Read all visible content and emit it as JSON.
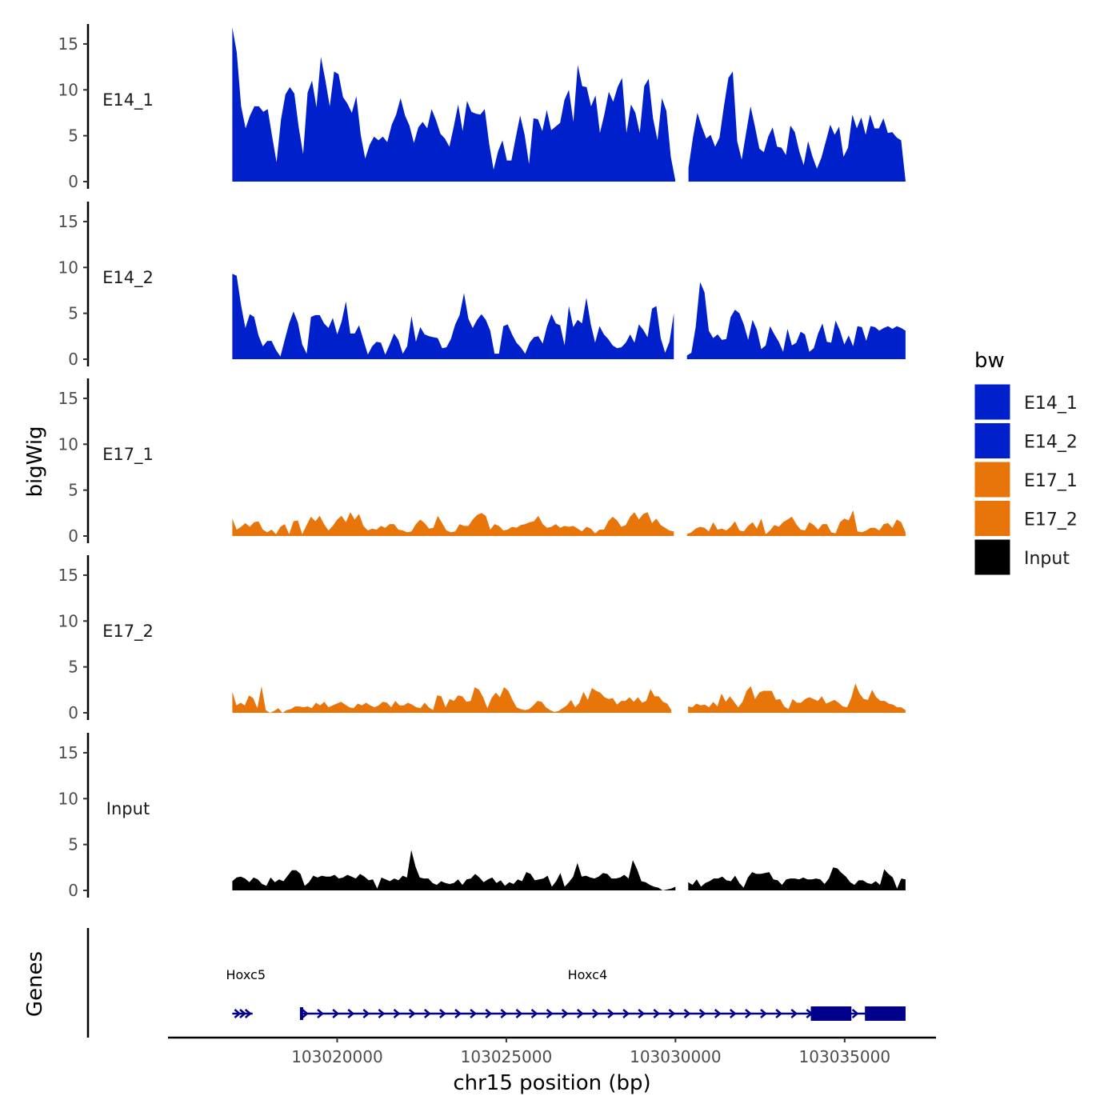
{
  "chart_data": {
    "type": "area",
    "chromosome": "chr15",
    "xlabel": "chr15 position (bp)",
    "ylabel": "bigWig",
    "genes_label": "Genes",
    "xlim": [
      103015000,
      103037700
    ],
    "region": [
      103016900,
      103036800
    ],
    "x_ticks": [
      103020000,
      103025000,
      103030000,
      103035000
    ],
    "x_tick_labels": [
      "103020000",
      "103025000",
      "103030000",
      "103035000"
    ],
    "ylim": [
      0,
      17
    ],
    "y_ticks": [
      0,
      5,
      10,
      15
    ],
    "y_tick_labels": [
      "0",
      "5",
      "10",
      "15"
    ],
    "gap": [
      103030000,
      103030300
    ],
    "legend": {
      "title": "bw",
      "items": [
        {
          "label": "E14_1",
          "color": "#0020CC"
        },
        {
          "label": "E14_2",
          "color": "#0020CC"
        },
        {
          "label": "E17_1",
          "color": "#E8750A"
        },
        {
          "label": "E17_2",
          "color": "#E8750A"
        },
        {
          "label": "Input",
          "color": "#000000"
        }
      ]
    },
    "series": [
      {
        "name": "E14_1",
        "color": "#0020CC",
        "values": [
          16.8,
          14.1,
          8.2,
          5.8,
          7.2,
          8.2,
          8.2,
          7.6,
          7.9,
          4.9,
          2.1,
          6.8,
          9.5,
          10.3,
          9.6,
          5.9,
          3,
          9.7,
          11,
          8.1,
          13.6,
          11.1,
          8.2,
          12,
          11.7,
          9.2,
          8.5,
          7.5,
          9.3,
          5.1,
          2.5,
          4,
          4.9,
          4.5,
          4.9,
          4.3,
          6.2,
          7.3,
          9.1,
          7.2,
          6.1,
          4.2,
          5.9,
          6.5,
          5.8,
          7.9,
          6.7,
          5.2,
          4.7,
          3.8,
          6,
          8.4,
          5.5,
          8.8,
          7.6,
          7.4,
          7.3,
          7.9,
          4.1,
          1.3,
          3.3,
          4.5,
          2.3,
          2.3,
          4.8,
          7.2,
          5.1,
          1.9,
          6.9,
          6.8,
          5.5,
          7.8,
          5.6,
          6,
          6.4,
          8.9,
          10,
          6.5,
          12.7,
          10.4,
          10.3,
          8.2,
          9.4,
          5.3,
          7.3,
          9.8,
          8.7,
          10.3,
          11.3,
          5.3,
          8.4,
          7.5,
          5.3,
          10.4,
          11.2,
          6.9,
          4.5,
          9.1,
          7.7,
          2.7,
          0.2,
          1.2,
          2.8,
          1.5,
          4.8,
          7.5,
          6,
          4.7,
          5.1,
          3.8,
          4.8,
          8.2,
          11.3,
          12,
          4.4,
          2.4,
          5.3,
          8.2,
          6,
          3.6,
          3.2,
          4.9,
          5.9,
          3.8,
          3.7,
          2.9,
          6.1,
          5.4,
          3.3,
          1.8,
          4.4,
          2.7,
          1.4,
          2.6,
          4.4,
          6.2,
          5.1,
          6,
          2.7,
          3.7,
          7.3,
          5.8,
          7,
          5.1,
          7.3,
          5.8,
          5.8,
          6.9,
          5.3,
          5.4,
          4.8,
          4.5,
          0.1
        ]
      },
      {
        "name": "E14_2",
        "color": "#0020CC",
        "values": [
          9.3,
          9.1,
          5.9,
          3.4,
          4.9,
          4.6,
          2.6,
          1.4,
          2,
          2,
          1,
          0.3,
          2.1,
          3.9,
          5.2,
          4,
          1.6,
          0.6,
          4.6,
          4.8,
          4.8,
          3.9,
          3.4,
          4.5,
          2.7,
          4.1,
          6.3,
          2.8,
          2.8,
          3.7,
          2.1,
          0.5,
          1.4,
          1.9,
          1.8,
          0.5,
          1.6,
          2.8,
          2.1,
          0.6,
          1.4,
          4.7,
          1.9,
          3.5,
          2.7,
          2.5,
          2.4,
          2.3,
          1.2,
          1.3,
          2.2,
          3.8,
          4.8,
          7.2,
          4.4,
          3.4,
          4.3,
          4.9,
          4.3,
          3.1,
          0.6,
          0.6,
          3.6,
          3.8,
          2.7,
          1.8,
          1.3,
          0.6,
          1.8,
          2.4,
          2.5,
          1.7,
          3.6,
          4.9,
          3.9,
          3.7,
          1.5,
          5.8,
          3.5,
          4.3,
          3.9,
          6.7,
          3.8,
          1.8,
          3.6,
          2.7,
          2.2,
          1.5,
          1.2,
          1.3,
          1.8,
          2.7,
          1.8,
          3.8,
          3.2,
          2.4,
          5.5,
          5.8,
          2.3,
          0.7,
          1.9,
          5,
          2.2,
          0.1,
          0.4,
          0.7,
          3.5,
          8.4,
          7.3,
          3.1,
          2.3,
          2.7,
          2.1,
          2.2,
          4.6,
          5.4,
          5,
          3.8,
          2.1,
          4.3,
          3.2,
          1.1,
          1.5,
          3.6,
          2.7,
          1.9,
          0.8,
          3.3,
          1.5,
          1.8,
          3,
          2.7,
          0.8,
          1.2,
          2.8,
          3.9,
          1.9,
          1.8,
          4.2,
          3.1,
          1.6,
          2.6,
          1.4,
          3.6,
          3.5,
          2,
          3.6,
          3.5,
          3.1,
          3.4,
          3.6,
          3.3,
          3.6,
          3.4,
          3.1
        ]
      },
      {
        "name": "E17_1",
        "color": "#E8750A",
        "values": [
          1.9,
          0.7,
          1,
          1.4,
          1,
          1.5,
          1.6,
          0.7,
          0.4,
          0.7,
          0.2,
          1,
          1.3,
          0.2,
          1.6,
          1.7,
          0.2,
          1.2,
          2.1,
          1.6,
          2.2,
          1.3,
          0.6,
          1.1,
          1.8,
          2.2,
          1.5,
          2.6,
          1.8,
          2.4,
          1.1,
          0.6,
          0.8,
          0.7,
          1.1,
          0.9,
          1.3,
          1.3,
          0.7,
          0.6,
          0.4,
          0.5,
          1.3,
          1.8,
          1.4,
          0.8,
          0.9,
          2.2,
          1.4,
          0.6,
          0.4,
          0.5,
          1.3,
          1.1,
          1.1,
          1.8,
          2.3,
          2.5,
          2.2,
          0.7,
          1.3,
          1.1,
          0.6,
          0.7,
          1,
          0.9,
          1.2,
          1.3,
          1.5,
          1.6,
          2.2,
          1.3,
          0.9,
          1,
          1.3,
          0.9,
          1.1,
          1,
          1.1,
          0.8,
          0.5,
          1,
          0.8,
          0.3,
          0.7,
          0.7,
          1.6,
          2.1,
          1.7,
          1,
          1.2,
          2.1,
          2.6,
          1.8,
          2.4,
          2.6,
          1.4,
          1.9,
          1.2,
          0.9,
          0.6,
          0.5,
          0.4,
          0,
          0.2,
          0.4,
          0.8,
          1,
          0.9,
          0.5,
          1.5,
          0.7,
          0.8,
          0.6,
          1,
          1.6,
          0.6,
          0.5,
          1.1,
          1.5,
          0.8,
          1.9,
          0.2,
          0.6,
          1.2,
          1,
          1.5,
          1.8,
          2.1,
          1.3,
          0.7,
          0.6,
          1.5,
          1.2,
          0.7,
          1.3,
          1.3,
          0.4,
          0.3,
          1.5,
          1.9,
          1.7,
          2.8,
          0.5,
          0.4,
          0.6,
          0.9,
          0.9,
          0.6,
          1.3,
          1.4,
          0.9,
          1.8,
          1.5,
          0.4
        ]
      },
      {
        "name": "E17_2",
        "color": "#E8750A",
        "values": [
          2.3,
          0.8,
          1.1,
          0.8,
          1.9,
          1.6,
          0.5,
          2.9,
          0.3,
          0,
          0.2,
          0.5,
          0,
          0.3,
          0.4,
          0.7,
          0.7,
          0.6,
          0.7,
          0.5,
          1.1,
          0.8,
          1.2,
          0.6,
          0.8,
          1,
          1.2,
          0.9,
          0.6,
          0.5,
          1,
          0.8,
          1.1,
          0.8,
          0.6,
          0.8,
          1.2,
          1.1,
          0.6,
          1.3,
          0.8,
          0.8,
          1.1,
          0.9,
          0.6,
          0.5,
          1.1,
          0.6,
          0.3,
          1.9,
          1.8,
          0.6,
          1.5,
          1.3,
          1.9,
          1.8,
          1.2,
          1.3,
          2.8,
          2.5,
          1.7,
          0.5,
          1.6,
          2.2,
          1.7,
          2.8,
          2.4,
          1.4,
          0.6,
          0.4,
          0.3,
          0.4,
          0.8,
          1.3,
          1.2,
          0.6,
          0.3,
          0.1,
          0.2,
          0.5,
          0.8,
          1.4,
          0.6,
          1.1,
          2.3,
          1.4,
          2.7,
          2.4,
          2.2,
          1.7,
          1.5,
          1.6,
          0.9,
          1.3,
          1.3,
          1.7,
          1.2,
          1.7,
          1.1,
          1.3,
          2.6,
          1.8,
          1.8,
          1.2,
          1,
          0.3,
          0.2,
          0.2,
          1.1,
          0.7,
          0.6,
          1,
          0.8,
          0.9,
          0.6,
          1.2,
          0.7,
          2.1,
          1.2,
          1.8,
          1.2,
          0.6,
          1.2,
          2.4,
          2.9,
          1.5,
          2.2,
          2.4,
          2.4,
          2.4,
          1.4,
          1.5,
          0.7,
          0.4,
          1.5,
          1.1,
          1.1,
          1.5,
          1.7,
          1.5,
          1.3,
          1.8,
          1,
          1.2,
          1.4,
          1.1,
          0.7,
          0.6,
          1.6,
          3.2,
          2.1,
          1.5,
          1.4,
          2.5,
          1.7,
          1.3,
          1.3,
          1,
          0.9,
          0.6,
          0.6,
          0.3
        ]
      },
      {
        "name": "Input",
        "color": "#000000",
        "values": [
          1,
          1.4,
          1.5,
          1.3,
          0.9,
          1.4,
          1.2,
          0.7,
          0.5,
          1.4,
          0.9,
          1.2,
          1,
          1.6,
          2.2,
          2.2,
          1.8,
          0.5,
          0.9,
          1.6,
          1.4,
          1.6,
          1.5,
          1.5,
          1.7,
          1.3,
          1.4,
          1.7,
          1.5,
          1.3,
          1.8,
          1.5,
          1.1,
          1.2,
          0.2,
          1.4,
          1.2,
          1,
          1.3,
          1.1,
          1.6,
          1.4,
          4.4,
          2.6,
          1.4,
          1.3,
          1.3,
          0.8,
          0.6,
          1,
          0.8,
          0.7,
          0.8,
          1.2,
          0.6,
          1.2,
          1.3,
          1.8,
          1.4,
          0.9,
          1.2,
          1.4,
          0.8,
          1.1,
          0.5,
          0.9,
          0.7,
          1.2,
          1,
          2,
          1.8,
          1.1,
          1.2,
          1.3,
          1.6,
          0.4,
          1,
          1.9,
          0.4,
          0.9,
          1.5,
          3,
          1.5,
          1.6,
          1.4,
          1.3,
          1.5,
          1.9,
          1.8,
          1.3,
          1.3,
          1.4,
          1.7,
          1.3,
          3.3,
          2.3,
          1,
          0.9,
          0.6,
          0.4,
          0.3,
          0,
          0.1,
          0.2,
          0.4,
          1.3,
          1.7,
          0.9,
          0.6,
          1.2,
          0.4,
          0.8,
          1,
          1.3,
          1.3,
          1.5,
          1.1,
          1,
          1.6,
          0.8,
          0.3,
          1.4,
          2,
          1.8,
          1.8,
          1.9,
          2,
          1.2,
          1.1,
          0.6,
          1.2,
          1.3,
          1.3,
          1.2,
          1.4,
          1.2,
          1.2,
          1.3,
          1.2,
          0.7,
          1.3,
          2.5,
          2.4,
          1.9,
          1.5,
          0.9,
          0.6,
          1.1,
          1.1,
          0.8,
          0.7,
          1,
          0.6,
          2.3,
          1.8,
          1.4,
          0.2,
          1.3,
          1.2
        ]
      }
    ],
    "genes": [
      {
        "name": "Hoxc5",
        "start": 103016900,
        "end": 103017500,
        "label_pos": 103017300,
        "thick": [],
        "chevrons": 3
      },
      {
        "name": "Hoxc4",
        "start": 103018900,
        "end": 103036800,
        "label_pos": 103027400,
        "thick": [
          [
            103034000,
            103035200
          ],
          [
            103035600,
            103036800
          ]
        ],
        "chevrons": 40
      }
    ]
  }
}
